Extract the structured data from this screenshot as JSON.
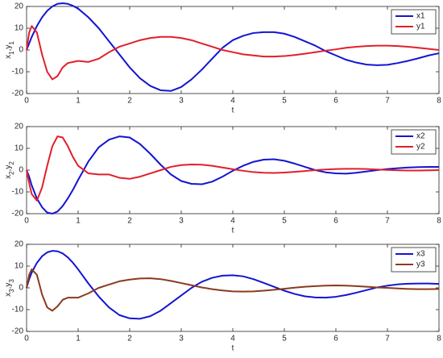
{
  "chart_data": [
    {
      "type": "line",
      "xlabel": "t",
      "ylabel": "x1,y1",
      "x": [
        0,
        0.05,
        0.1,
        0.2,
        0.3,
        0.4,
        0.5,
        0.6,
        0.7,
        0.8,
        0.9,
        1.0,
        1.2,
        1.4,
        1.6,
        1.8,
        2.0,
        2.2,
        2.4,
        2.6,
        2.8,
        3.0,
        3.2,
        3.4,
        3.6,
        3.8,
        4.0,
        4.2,
        4.4,
        4.6,
        4.8,
        5.0,
        5.2,
        5.4,
        5.6,
        5.8,
        6.0,
        6.2,
        6.4,
        6.6,
        6.8,
        7.0,
        7.2,
        7.4,
        7.6,
        7.8,
        8.0
      ],
      "series": [
        {
          "name": "x1",
          "color": "#1414d2",
          "values": [
            0,
            3,
            6,
            11,
            15,
            18,
            20,
            21.2,
            21.5,
            21.2,
            20.3,
            19,
            15,
            10,
            4,
            -2,
            -8,
            -13,
            -16.5,
            -18.5,
            -18.8,
            -17,
            -13.5,
            -9,
            -4,
            1,
            4.5,
            6.5,
            7.8,
            8.2,
            8.2,
            7.5,
            6,
            4,
            2,
            -0.5,
            -2.5,
            -4.5,
            -5.8,
            -6.7,
            -7,
            -6.8,
            -6,
            -5,
            -3.8,
            -2.5,
            -1.5
          ]
        },
        {
          "name": "y1",
          "color": "#e0202a",
          "values": [
            0,
            8,
            11,
            8,
            -2,
            -10,
            -13.5,
            -12,
            -8,
            -6,
            -5.5,
            -5,
            -5.5,
            -4,
            -1,
            1.5,
            3,
            4.5,
            5.5,
            6,
            6,
            5.5,
            4.5,
            3,
            1.5,
            0,
            -1,
            -2,
            -2.5,
            -3,
            -3,
            -2.8,
            -2.3,
            -1.7,
            -1,
            -0.3,
            0.3,
            1,
            1.5,
            1.8,
            2,
            2,
            1.8,
            1.5,
            1,
            0.5,
            0
          ]
        }
      ],
      "xlim": [
        0,
        8
      ],
      "xticks": [
        0,
        1,
        2,
        3,
        4,
        5,
        6,
        7,
        8
      ],
      "ylim": [
        -20,
        20
      ],
      "yticks": [
        -20,
        -10,
        0,
        10,
        20
      ],
      "legend": "upper right"
    },
    {
      "type": "line",
      "xlabel": "t",
      "ylabel": "x2,y2",
      "x": [
        0,
        0.05,
        0.1,
        0.2,
        0.3,
        0.4,
        0.5,
        0.6,
        0.7,
        0.8,
        0.9,
        1.0,
        1.2,
        1.4,
        1.6,
        1.8,
        2.0,
        2.2,
        2.4,
        2.6,
        2.8,
        3.0,
        3.2,
        3.4,
        3.6,
        3.8,
        4.0,
        4.2,
        4.4,
        4.6,
        4.8,
        5.0,
        5.2,
        5.4,
        5.6,
        5.8,
        6.0,
        6.2,
        6.4,
        6.6,
        6.8,
        7.0,
        7.2,
        7.4,
        7.6,
        7.8,
        8.0
      ],
      "series": [
        {
          "name": "x2",
          "color": "#1414d2",
          "values": [
            0,
            -3,
            -7,
            -13,
            -17,
            -19.5,
            -20,
            -19,
            -16.5,
            -13,
            -9,
            -4.5,
            4,
            10.5,
            14,
            15.5,
            15,
            12,
            7.5,
            2.5,
            -2,
            -5,
            -6.3,
            -6.5,
            -5.3,
            -3,
            -0.3,
            2,
            3.8,
            4.8,
            5,
            4.3,
            3,
            1.5,
            0,
            -1,
            -1.5,
            -1.6,
            -1.2,
            -0.6,
            0,
            0.5,
            0.9,
            1.2,
            1.4,
            1.5,
            1.5
          ]
        },
        {
          "name": "y2",
          "color": "#e0202a",
          "values": [
            0,
            -6,
            -11,
            -14,
            -8,
            2,
            11,
            15.5,
            15,
            11,
            6,
            2,
            -1.5,
            -2,
            -2,
            -3.5,
            -4,
            -3,
            -1.5,
            0,
            1.5,
            2.3,
            2.6,
            2.5,
            2,
            1.2,
            0.4,
            -0.3,
            -0.9,
            -1.2,
            -1.3,
            -1.1,
            -0.8,
            -0.4,
            0,
            0.3,
            0.5,
            0.6,
            0.6,
            0.5,
            0.3,
            0.1,
            -0.1,
            -0.2,
            -0.2,
            -0.1,
            0
          ]
        }
      ],
      "xlim": [
        0,
        8
      ],
      "xticks": [
        0,
        1,
        2,
        3,
        4,
        5,
        6,
        7,
        8
      ],
      "ylim": [
        -20,
        20
      ],
      "yticks": [
        -20,
        -10,
        0,
        10,
        20
      ],
      "legend": "upper right"
    },
    {
      "type": "line",
      "xlabel": "t",
      "ylabel": "x3,y3",
      "x": [
        0,
        0.05,
        0.1,
        0.2,
        0.3,
        0.4,
        0.5,
        0.6,
        0.7,
        0.8,
        0.9,
        1.0,
        1.2,
        1.4,
        1.6,
        1.8,
        2.0,
        2.2,
        2.4,
        2.6,
        2.8,
        3.0,
        3.2,
        3.4,
        3.6,
        3.8,
        4.0,
        4.2,
        4.4,
        4.6,
        4.8,
        5.0,
        5.2,
        5.4,
        5.6,
        5.8,
        6.0,
        6.2,
        6.4,
        6.6,
        6.8,
        7.0,
        7.2,
        7.4,
        7.6,
        7.8,
        8.0
      ],
      "series": [
        {
          "name": "x3",
          "color": "#1414d2",
          "values": [
            0,
            4,
            7,
            11.5,
            14.5,
            16.3,
            17,
            16.8,
            15.8,
            14,
            11.5,
            8.5,
            2,
            -4,
            -9,
            -12.5,
            -14,
            -14.2,
            -13,
            -10.5,
            -7,
            -3.5,
            0,
            2.8,
            4.6,
            5.6,
            5.8,
            5.3,
            4,
            2.3,
            0.5,
            -1.3,
            -2.8,
            -3.9,
            -4.4,
            -4.5,
            -4.1,
            -3.3,
            -2.2,
            -1,
            0.2,
            1,
            1.6,
            1.9,
            2,
            2,
            1.8
          ]
        },
        {
          "name": "y3",
          "color": "#8b3a1e",
          "values": [
            0,
            6,
            8.5,
            6,
            -3,
            -9,
            -10.5,
            -8.5,
            -5.5,
            -4.5,
            -4.5,
            -4.5,
            -2.5,
            0,
            1.5,
            3,
            3.8,
            4.3,
            4.4,
            4,
            3.2,
            2.2,
            1.2,
            0.2,
            -0.6,
            -1.2,
            -1.6,
            -1.7,
            -1.6,
            -1.3,
            -0.9,
            -0.4,
            0.1,
            0.5,
            0.8,
            1,
            1.1,
            1,
            0.8,
            0.5,
            0.2,
            0,
            -0.3,
            -0.5,
            -0.6,
            -0.6,
            -0.5
          ]
        }
      ],
      "xlim": [
        0,
        8
      ],
      "xticks": [
        0,
        1,
        2,
        3,
        4,
        5,
        6,
        7,
        8
      ],
      "ylim": [
        -20,
        20
      ],
      "yticks": [
        -20,
        -10,
        0,
        10,
        20
      ],
      "legend": "upper right"
    }
  ]
}
